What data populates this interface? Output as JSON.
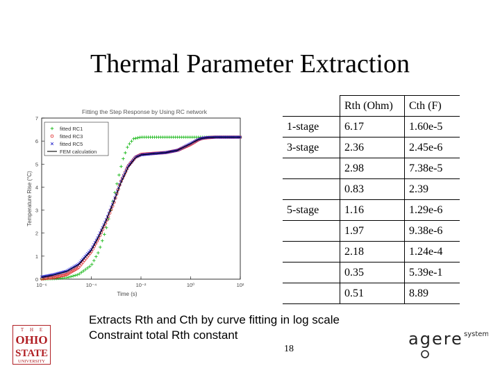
{
  "slide": {
    "title": "Thermal Parameter Extraction",
    "notes": [
      "Extracts Rth and Cth by curve fitting in log scale",
      "Constraint total Rth constant"
    ],
    "page_number": "18"
  },
  "table": {
    "headers": [
      "",
      "Rth (Ohm)",
      "Cth (F)"
    ],
    "rows": [
      [
        "1-stage",
        "6.17",
        "1.60e-5"
      ],
      [
        "3-stage",
        "2.36",
        "2.45e-6"
      ],
      [
        "",
        "2.98",
        "7.38e-5"
      ],
      [
        "",
        "0.83",
        "2.39"
      ],
      [
        "5-stage",
        "1.16",
        "1.29e-6"
      ],
      [
        "",
        "1.97",
        "9.38e-6"
      ],
      [
        "",
        "2.18",
        "1.24e-4"
      ],
      [
        "",
        "0.35",
        "5.39e-1"
      ],
      [
        "",
        "0.51",
        "8.89"
      ]
    ]
  },
  "logos": {
    "osu_text": [
      "T",
      "H",
      "E",
      "OHIO",
      "STATE",
      "UNIVERSITY"
    ],
    "agere_text": "agere",
    "agere_sub": "systems"
  },
  "chart_data": {
    "type": "scatter",
    "title": "Fitting the Step Response by Using RC network",
    "xlabel": "Time (s)",
    "ylabel": "Temperature Rise (°C)",
    "x_scale": "log",
    "xlim": [
      1e-06,
      100
    ],
    "ylim": [
      0,
      7
    ],
    "x_ticks": [
      "10⁻⁶",
      "10⁻⁴",
      "10⁻²",
      "10⁰",
      "10²"
    ],
    "x_tick_values": [
      1e-06,
      0.0001,
      0.01,
      1,
      100
    ],
    "y_ticks": [
      "0",
      "1",
      "2",
      "3",
      "4",
      "5",
      "6",
      "7"
    ],
    "y_tick_values": [
      0,
      1,
      2,
      3,
      4,
      5,
      6,
      7
    ],
    "legend_placement": "top-left",
    "series": [
      {
        "name": "fitted RC1",
        "marker": "+",
        "color": "#22bb22",
        "x": [
          1e-06,
          3e-06,
          1e-05,
          3e-05,
          0.0001,
          0.0002,
          0.0004,
          0.0007,
          0.001,
          0.0015,
          0.002,
          0.003,
          0.005,
          0.01,
          0.1,
          1,
          10,
          100
        ],
        "y": [
          0.0,
          0.02,
          0.06,
          0.2,
          0.6,
          1.2,
          2.2,
          3.3,
          4.0,
          4.8,
          5.3,
          5.8,
          6.1,
          6.17,
          6.17,
          6.17,
          6.17,
          6.17
        ]
      },
      {
        "name": "fitted RC3",
        "marker": "o",
        "color": "#dd2222",
        "x": [
          1e-06,
          3e-06,
          1e-05,
          3e-05,
          0.0001,
          0.0002,
          0.0004,
          0.0008,
          0.0015,
          0.003,
          0.006,
          0.01,
          0.03,
          0.1,
          0.3,
          1,
          2,
          3,
          5,
          10,
          100
        ],
        "y": [
          0.02,
          0.07,
          0.2,
          0.5,
          1.2,
          1.8,
          2.5,
          3.3,
          4.2,
          4.9,
          5.3,
          5.42,
          5.46,
          5.5,
          5.6,
          5.85,
          6.05,
          6.12,
          6.15,
          6.17,
          6.17
        ]
      },
      {
        "name": "fitted RC5",
        "marker": "x",
        "color": "#2222cc",
        "x": [
          1e-06,
          3e-06,
          1e-05,
          3e-05,
          0.0001,
          0.0002,
          0.0004,
          0.0008,
          0.0015,
          0.003,
          0.006,
          0.01,
          0.03,
          0.1,
          0.3,
          1,
          2,
          3,
          5,
          10,
          100
        ],
        "y": [
          0.1,
          0.2,
          0.35,
          0.65,
          1.3,
          1.9,
          2.6,
          3.4,
          4.2,
          4.9,
          5.3,
          5.4,
          5.45,
          5.5,
          5.6,
          5.9,
          6.07,
          6.13,
          6.16,
          6.17,
          6.17
        ]
      },
      {
        "name": "FEM calculation",
        "marker": "line",
        "color": "#000000",
        "x": [
          1e-06,
          3e-06,
          1e-05,
          3e-05,
          0.0001,
          0.0002,
          0.0004,
          0.0008,
          0.0015,
          0.003,
          0.006,
          0.01,
          0.03,
          0.1,
          0.3,
          1,
          2,
          3,
          5,
          10,
          100
        ],
        "y": [
          0.08,
          0.18,
          0.33,
          0.62,
          1.25,
          1.85,
          2.55,
          3.35,
          4.15,
          4.85,
          5.28,
          5.4,
          5.45,
          5.5,
          5.6,
          5.88,
          6.06,
          6.12,
          6.15,
          6.17,
          6.17
        ]
      }
    ]
  }
}
